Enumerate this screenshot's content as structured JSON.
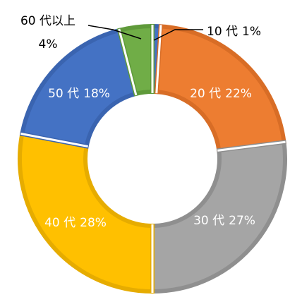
{
  "chart_data": {
    "type": "donut",
    "categories": [
      "10 代",
      "20 代",
      "30 代",
      "40 代",
      "50 代",
      "60 代以上"
    ],
    "values": [
      1,
      22,
      27,
      28,
      18,
      4
    ],
    "value_labels": [
      "1%",
      "22%",
      "27%",
      "28%",
      "18%",
      "4%"
    ],
    "colors": [
      "#4472c4",
      "#ed7d31",
      "#a5a5a5",
      "#ffc000",
      "#4472c4",
      "#70ad47"
    ],
    "edge_colors": [
      "#3a64b0",
      "#d86d26",
      "#8f8f8f",
      "#e6ac00",
      "#3a64b0",
      "#5f9a3a"
    ]
  }
}
